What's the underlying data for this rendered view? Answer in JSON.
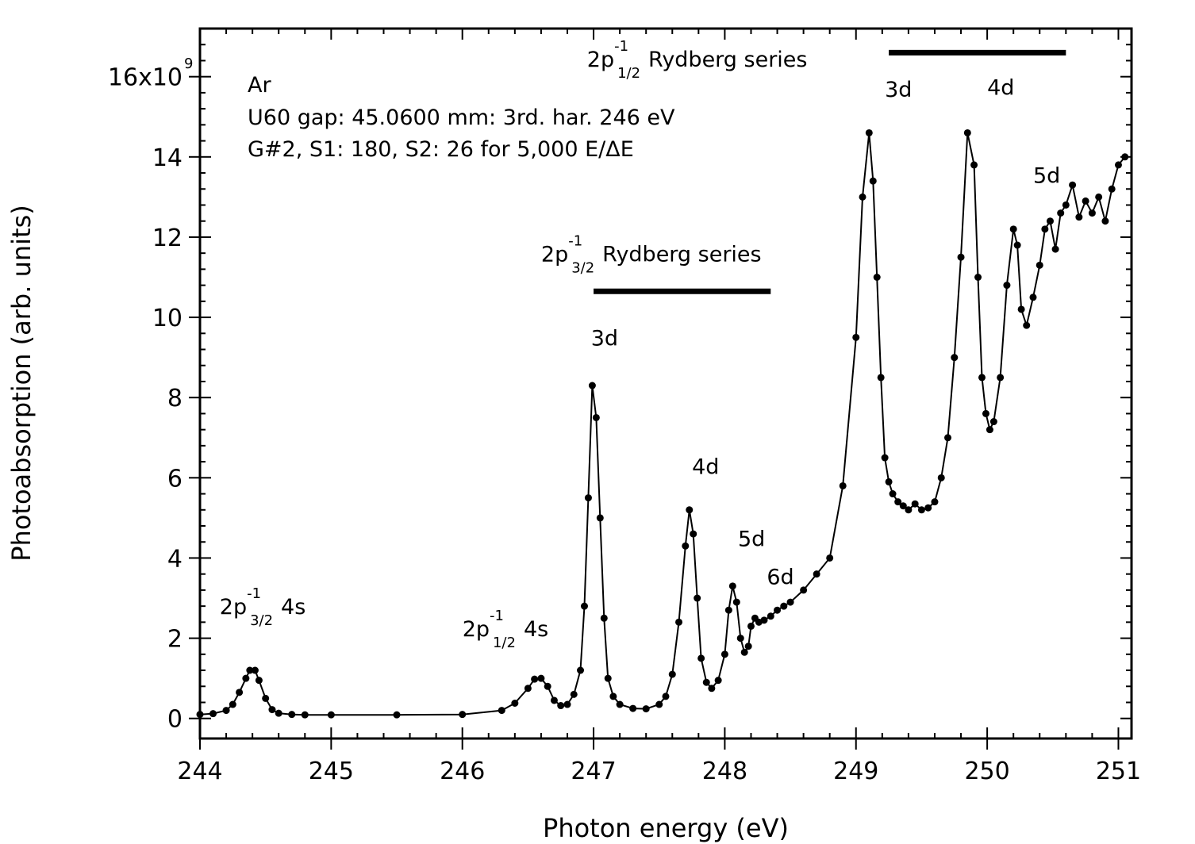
{
  "chart_data": {
    "type": "line",
    "title": "",
    "xlabel": "Photon energy (eV)",
    "ylabel": "Photoabsorption (arb. units)",
    "xlim": [
      244.0,
      251.1
    ],
    "ylim": [
      -0.5,
      17.2
    ],
    "x_ticks": [
      244,
      245,
      246,
      247,
      248,
      249,
      250,
      251
    ],
    "y_ticks": [
      0,
      2,
      4,
      6,
      8,
      10,
      12,
      14,
      16
    ],
    "y_tick_labels": [
      "0",
      "2",
      "4",
      "6",
      "8",
      "10",
      "12",
      "14",
      "16x10"
    ],
    "y_exponent": "9",
    "info_lines": [
      "Ar",
      "U60 gap: 45.0600 mm: 3rd. har. 246 eV",
      "G#2, S1: 180, S2: 26 for 5,000 E/ΔE"
    ],
    "series": [
      {
        "name": "Ar photoabsorption",
        "x": [
          244.0,
          244.1,
          244.2,
          244.25,
          244.3,
          244.35,
          244.38,
          244.42,
          244.45,
          244.5,
          244.55,
          244.6,
          244.7,
          244.8,
          245.0,
          245.5,
          246.0,
          246.3,
          246.4,
          246.5,
          246.55,
          246.6,
          246.65,
          246.7,
          246.75,
          246.8,
          246.85,
          246.9,
          246.93,
          246.96,
          246.99,
          247.02,
          247.05,
          247.08,
          247.11,
          247.15,
          247.2,
          247.3,
          247.4,
          247.5,
          247.55,
          247.6,
          247.65,
          247.7,
          247.73,
          247.76,
          247.79,
          247.82,
          247.86,
          247.9,
          247.95,
          248.0,
          248.03,
          248.06,
          248.09,
          248.12,
          248.15,
          248.18,
          248.2,
          248.23,
          248.26,
          248.3,
          248.35,
          248.4,
          248.45,
          248.5,
          248.6,
          248.7,
          248.8,
          248.9,
          249.0,
          249.05,
          249.1,
          249.13,
          249.16,
          249.19,
          249.22,
          249.25,
          249.28,
          249.32,
          249.36,
          249.4,
          249.45,
          249.5,
          249.55,
          249.6,
          249.65,
          249.7,
          249.75,
          249.8,
          249.85,
          249.9,
          249.93,
          249.96,
          249.99,
          250.02,
          250.05,
          250.1,
          250.15,
          250.2,
          250.23,
          250.26,
          250.3,
          250.35,
          250.4,
          250.44,
          250.48,
          250.52,
          250.56,
          250.6,
          250.65,
          250.7,
          250.75,
          250.8,
          250.85,
          250.9,
          250.95,
          251.0,
          251.05
        ],
        "values": [
          0.1,
          0.12,
          0.2,
          0.35,
          0.65,
          1.0,
          1.2,
          1.2,
          0.95,
          0.5,
          0.22,
          0.13,
          0.1,
          0.09,
          0.09,
          0.09,
          0.1,
          0.2,
          0.38,
          0.75,
          0.98,
          1.0,
          0.8,
          0.45,
          0.32,
          0.35,
          0.6,
          1.2,
          2.8,
          5.5,
          8.3,
          7.5,
          5.0,
          2.5,
          1.0,
          0.55,
          0.35,
          0.25,
          0.24,
          0.35,
          0.55,
          1.1,
          2.4,
          4.3,
          5.2,
          4.6,
          3.0,
          1.5,
          0.9,
          0.75,
          0.95,
          1.6,
          2.7,
          3.3,
          2.9,
          2.0,
          1.65,
          1.8,
          2.3,
          2.5,
          2.4,
          2.45,
          2.55,
          2.7,
          2.8,
          2.9,
          3.2,
          3.6,
          4.0,
          5.8,
          9.5,
          13.0,
          14.6,
          13.4,
          11.0,
          8.5,
          6.5,
          5.9,
          5.6,
          5.4,
          5.3,
          5.2,
          5.35,
          5.2,
          5.25,
          5.4,
          6.0,
          7.0,
          9.0,
          11.5,
          14.6,
          13.8,
          11.0,
          8.5,
          7.6,
          7.2,
          7.4,
          8.5,
          10.8,
          12.2,
          11.8,
          10.2,
          9.8,
          10.5,
          11.3,
          12.2,
          12.4,
          11.7,
          12.6,
          12.8,
          13.3,
          12.5,
          12.9,
          12.6,
          13.0,
          12.4,
          13.2,
          13.8,
          14.0
        ]
      }
    ],
    "bars": [
      {
        "label": "2p -1 3/2 Rydberg series",
        "x_start": 247.0,
        "x_end": 248.35,
        "y": 10.65
      },
      {
        "label": "2p -1 1/2 Rydberg series",
        "x_start": 249.25,
        "x_end": 250.6,
        "y": 16.6
      }
    ],
    "annotations": [
      {
        "base": "2p",
        "sup": "-1",
        "sub": "3/2",
        "rest": "4s",
        "x": 244.15,
        "y": 2.6
      },
      {
        "base": "2p",
        "sup": "-1",
        "sub": "1/2",
        "rest": "4s",
        "x": 246.0,
        "y": 2.05
      },
      {
        "base": "3d",
        "x": 246.98,
        "y": 9.3
      },
      {
        "base": "4d",
        "x": 247.75,
        "y": 6.1
      },
      {
        "base": "5d",
        "x": 248.1,
        "y": 4.3
      },
      {
        "base": "6d",
        "x": 248.32,
        "y": 3.35
      },
      {
        "base": "2p",
        "sup": "-1",
        "sub": "3/2",
        "rest": "Rydberg series",
        "x": 246.6,
        "y": 11.4
      },
      {
        "base": "2p",
        "sup": "-1",
        "sub": "1/2",
        "rest": "Rydberg series",
        "x": 246.95,
        "y": 16.25
      },
      {
        "base": "3d",
        "x": 249.22,
        "y": 15.5
      },
      {
        "base": "4d",
        "x": 250.0,
        "y": 15.55
      },
      {
        "base": "5d",
        "x": 250.35,
        "y": 13.35
      }
    ]
  }
}
